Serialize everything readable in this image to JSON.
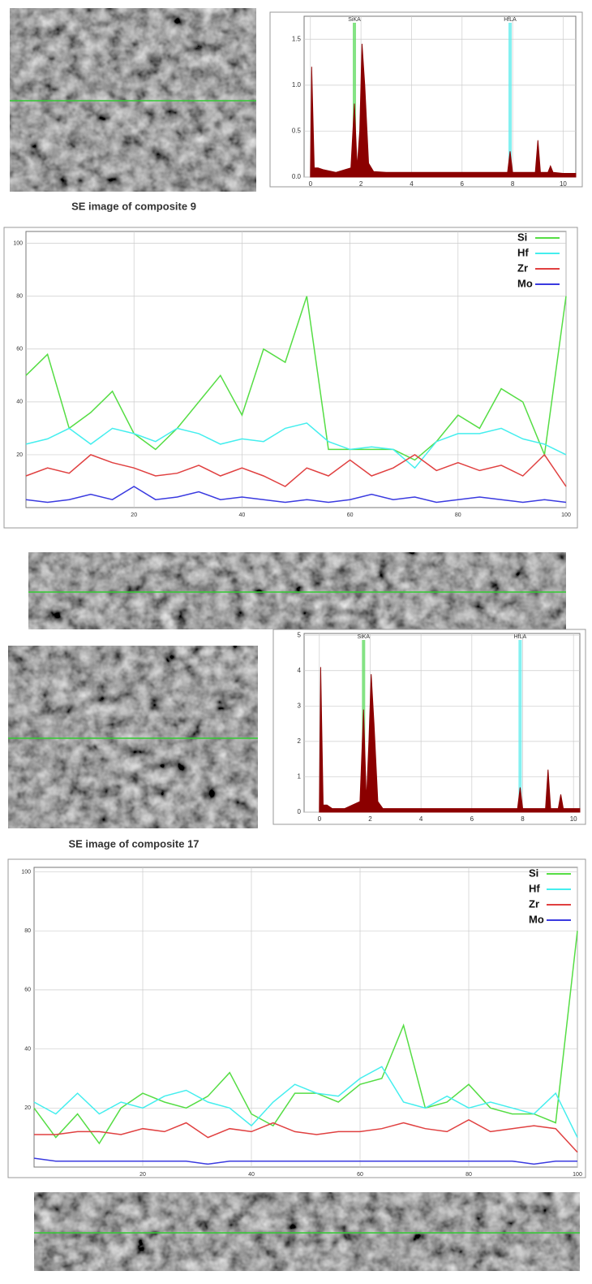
{
  "chart_data": [
    {
      "type": "area",
      "color": "#8b0000",
      "xlim": [
        -0.25,
        10.5
      ],
      "ylim": [
        0,
        1.75
      ],
      "xticks": [
        0,
        2,
        4,
        6,
        8,
        10
      ],
      "yticks": [
        {
          "value": 0,
          "label": "0.0"
        },
        {
          "value": 0.5,
          "label": "0.5"
        },
        {
          "value": 1,
          "label": "1.0"
        },
        {
          "value": 1.5,
          "label": "1.5"
        }
      ],
      "grid": true,
      "x": [
        0,
        0.05,
        0.15,
        0.3,
        0.5,
        1.0,
        1.6,
        1.74,
        1.85,
        1.95,
        2.04,
        2.15,
        2.3,
        2.5,
        3,
        5,
        7,
        7.8,
        7.9,
        8.0,
        8.9,
        9.0,
        9.1,
        9.4,
        9.5,
        9.6,
        10,
        10.5
      ],
      "values": [
        0.05,
        1.2,
        0.1,
        0.1,
        0.08,
        0.05,
        0.1,
        0.8,
        0.1,
        0.5,
        1.45,
        1.0,
        0.15,
        0.06,
        0.05,
        0.05,
        0.05,
        0.05,
        0.28,
        0.05,
        0.05,
        0.4,
        0.05,
        0.05,
        0.12,
        0.05,
        0.04,
        0.04
      ],
      "markers": [
        {
          "label": "SiKA",
          "x": 1.74,
          "color": "#66dd66"
        },
        {
          "label": "HfLA",
          "x": 7.9,
          "color": "#66eeee"
        }
      ]
    },
    {
      "type": "line",
      "xlim": [
        0,
        100
      ],
      "ylim": [
        0,
        104.5
      ],
      "xticks": [
        20,
        40,
        60,
        80,
        100
      ],
      "yticks": [
        20,
        40,
        60,
        80,
        100
      ],
      "grid": true,
      "legend": "upper right",
      "x": [
        0,
        4,
        8,
        12,
        16,
        20,
        24,
        28,
        32,
        36,
        40,
        44,
        48,
        52,
        56,
        60,
        64,
        68,
        72,
        76,
        80,
        84,
        88,
        92,
        96,
        100
      ],
      "series": [
        {
          "name": "Si",
          "color": "#55dd44",
          "values": [
            50,
            58,
            30,
            36,
            44,
            28,
            22,
            30,
            40,
            50,
            35,
            60,
            55,
            80,
            22,
            22,
            22,
            22,
            18,
            25,
            35,
            30,
            45,
            40,
            20,
            80
          ]
        },
        {
          "name": "Hf",
          "color": "#44eeee",
          "values": [
            24,
            26,
            30,
            24,
            30,
            28,
            25,
            30,
            28,
            24,
            26,
            25,
            30,
            32,
            25,
            22,
            23,
            22,
            15,
            25,
            28,
            28,
            30,
            26,
            24,
            20
          ]
        },
        {
          "name": "Zr",
          "color": "#e04040",
          "values": [
            12,
            15,
            13,
            20,
            17,
            15,
            12,
            13,
            16,
            12,
            15,
            12,
            8,
            15,
            12,
            18,
            12,
            15,
            20,
            14,
            17,
            14,
            16,
            12,
            20,
            8
          ]
        },
        {
          "name": "Mo",
          "color": "#3a3ae0",
          "values": [
            3,
            2,
            3,
            5,
            3,
            8,
            3,
            4,
            6,
            3,
            4,
            3,
            2,
            3,
            2,
            3,
            5,
            3,
            4,
            2,
            3,
            4,
            3,
            2,
            3,
            2
          ]
        }
      ]
    },
    {
      "type": "area",
      "color": "#8b0000",
      "xlim": [
        -0.6,
        10.25
      ],
      "ylim": [
        0,
        5.05
      ],
      "xticks": [
        0,
        2,
        4,
        6,
        8,
        10
      ],
      "yticks": [
        0,
        1,
        2,
        3,
        4,
        5
      ],
      "grid": true,
      "x": [
        0,
        0.05,
        0.15,
        0.3,
        0.5,
        1.0,
        1.6,
        1.74,
        1.85,
        1.95,
        2.04,
        2.15,
        2.3,
        2.5,
        3,
        5,
        7,
        7.8,
        7.9,
        8.0,
        8.9,
        9.0,
        9.1,
        9.4,
        9.5,
        9.6,
        10,
        10.25
      ],
      "values": [
        0.1,
        4.1,
        0.2,
        0.2,
        0.1,
        0.1,
        0.3,
        2.9,
        0.3,
        2.0,
        3.9,
        2.5,
        0.3,
        0.1,
        0.1,
        0.1,
        0.1,
        0.1,
        0.7,
        0.1,
        0.1,
        1.2,
        0.1,
        0.1,
        0.5,
        0.1,
        0.1,
        0.1
      ],
      "markers": [
        {
          "label": "SiKA",
          "x": 1.74,
          "color": "#66dd66"
        },
        {
          "label": "HfLA",
          "x": 7.9,
          "color": "#66eeee"
        }
      ]
    },
    {
      "type": "line",
      "xlim": [
        0,
        100
      ],
      "ylim": [
        0,
        101.5
      ],
      "xticks": [
        20,
        40,
        60,
        80,
        100
      ],
      "yticks": [
        20,
        40,
        60,
        80,
        100
      ],
      "grid": true,
      "legend": "upper right",
      "x": [
        0,
        4,
        8,
        12,
        16,
        20,
        24,
        28,
        32,
        36,
        40,
        44,
        48,
        52,
        56,
        60,
        64,
        68,
        72,
        76,
        80,
        84,
        88,
        92,
        96,
        100
      ],
      "series": [
        {
          "name": "Si",
          "color": "#55dd44",
          "values": [
            20,
            10,
            18,
            8,
            20,
            25,
            22,
            20,
            24,
            32,
            18,
            14,
            25,
            25,
            22,
            28,
            30,
            48,
            20,
            22,
            28,
            20,
            18,
            18,
            15,
            80
          ]
        },
        {
          "name": "Hf",
          "color": "#44eeee",
          "values": [
            22,
            18,
            25,
            18,
            22,
            20,
            24,
            26,
            22,
            20,
            14,
            22,
            28,
            25,
            24,
            30,
            34,
            22,
            20,
            24,
            20,
            22,
            20,
            18,
            25,
            10
          ]
        },
        {
          "name": "Zr",
          "color": "#e04040",
          "values": [
            11,
            11,
            12,
            12,
            11,
            13,
            12,
            15,
            10,
            13,
            12,
            15,
            12,
            11,
            12,
            12,
            13,
            15,
            13,
            12,
            16,
            12,
            13,
            14,
            13,
            5
          ]
        },
        {
          "name": "Mo",
          "color": "#3a3ae0",
          "values": [
            3,
            2,
            2,
            2,
            2,
            2,
            2,
            2,
            1,
            2,
            2,
            2,
            2,
            2,
            2,
            2,
            2,
            2,
            2,
            2,
            2,
            2,
            2,
            1,
            2,
            2
          ]
        }
      ]
    }
  ],
  "captions": [
    "SE image of composite 9",
    "SE image of composite 17"
  ]
}
